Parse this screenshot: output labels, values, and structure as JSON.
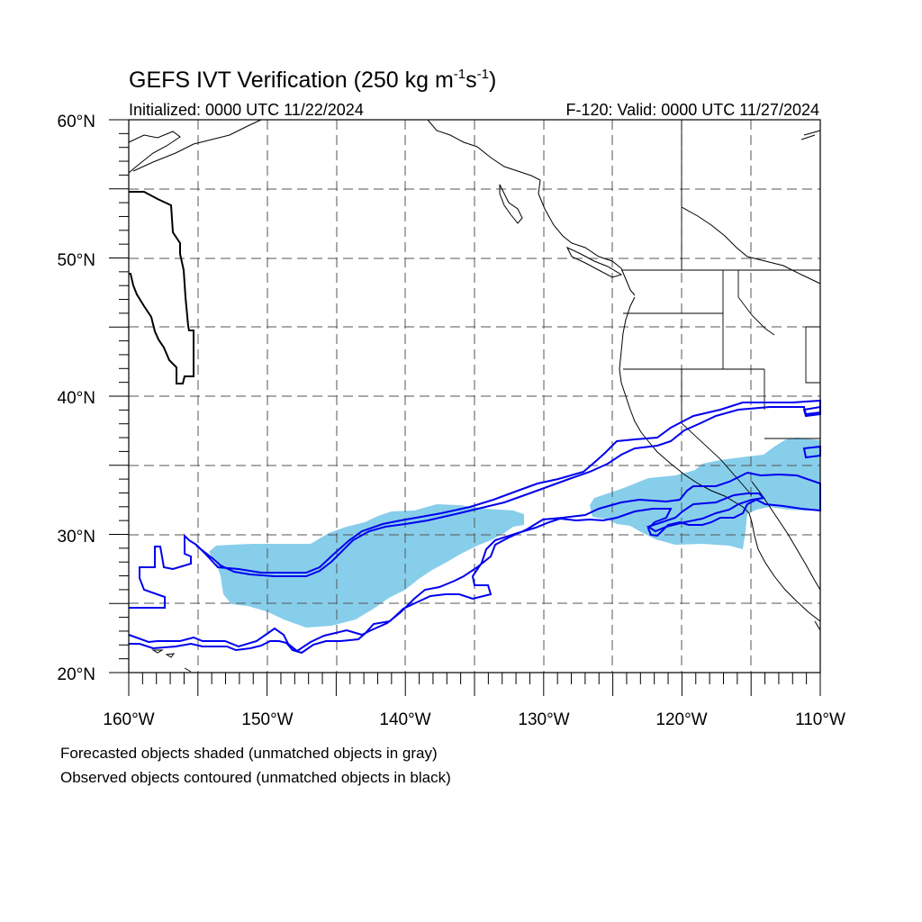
{
  "title_main": "GEFS IVT Verification (250 kg m",
  "title_sup1": "-1",
  "title_mid": "s",
  "title_sup2": "-1",
  "title_end": ")",
  "initialized": "Initialized: 0000 UTC 11/22/2024",
  "valid": "F-120: Valid: 0000 UTC 11/27/2024",
  "lat_labels": [
    "60°N",
    "50°N",
    "40°N",
    "30°N",
    "20°N"
  ],
  "lon_labels": [
    "160°W",
    "150°W",
    "140°W",
    "130°W",
    "120°W",
    "110°W"
  ],
  "footnote_1": "Forecasted objects shaded (unmatched objects in gray)",
  "footnote_2": "Observed objects contoured (unmatched objects in black)",
  "map_extent": {
    "lon_min": -160,
    "lon_max": -110,
    "lat_min": 20,
    "lat_max": 60
  },
  "colors": {
    "forecast_fill": "#87ceeb",
    "observed_matched": "#0000ee",
    "observed_unmatched": "#000000",
    "coastline": "#000000",
    "grid": "#555555"
  },
  "grid": {
    "dashed": true,
    "lon_step": 5,
    "lat_step": 5
  }
}
